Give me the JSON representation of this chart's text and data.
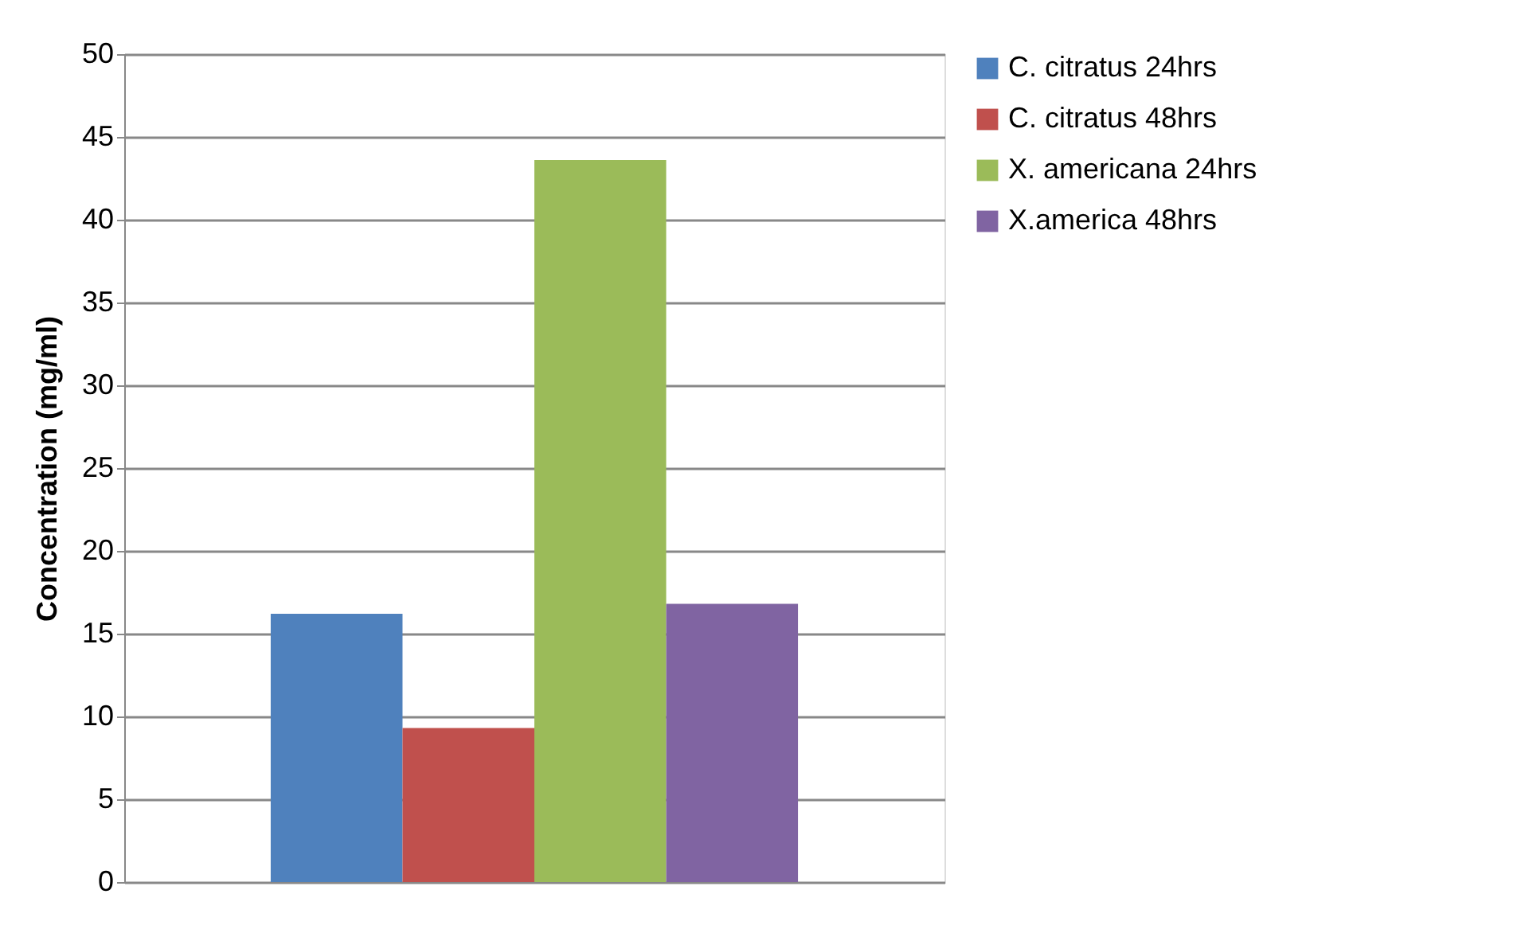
{
  "chart_data": {
    "type": "bar",
    "ylabel": "Concentration (mg/ml)",
    "categories": [
      null
    ],
    "series": [
      {
        "name": "C. citratus 24hrs",
        "color": "#4f81bd",
        "values": [
          16.2
        ]
      },
      {
        "name": "C. citratus 48hrs",
        "color": "#c0504d",
        "values": [
          9.3
        ]
      },
      {
        "name": "X. americana 24hrs",
        "color": "#9bbb59",
        "values": [
          43.6
        ]
      },
      {
        "name": "X.america 48hrs",
        "color": "#8064a2",
        "values": [
          16.8
        ]
      }
    ],
    "ylim": [
      0,
      50
    ],
    "yticks": [
      0,
      5,
      10,
      15,
      20,
      25,
      30,
      35,
      40,
      45,
      50
    ],
    "grid": "y",
    "legend": "right"
  }
}
